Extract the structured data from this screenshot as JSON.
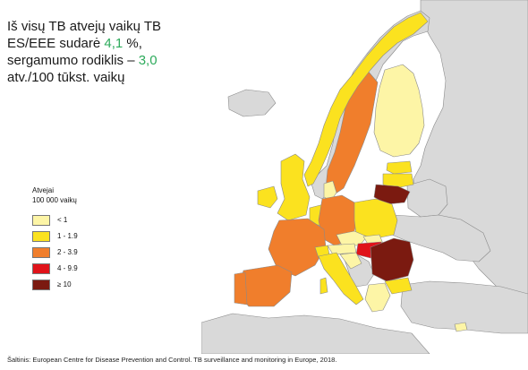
{
  "title": {
    "line1": "Iš visų TB atvejų vaikų TB",
    "line2_pre": "ES/EEE sudarė ",
    "line2_value": "4,1",
    "line2_post": " %,",
    "line3_pre": "sergamumo rodiklis – ",
    "line3_value": "3,0",
    "line4": "atv./100 tūkst. vaikų"
  },
  "legend": {
    "title_line1": "Atvejai",
    "title_line2": "100 000 vaikų",
    "items": [
      {
        "label": "< 1",
        "color": "#fdf5a6"
      },
      {
        "label": "1 - 1.9",
        "color": "#fbe21f"
      },
      {
        "label": "2 - 3.9",
        "color": "#f07e2c"
      },
      {
        "label": "4 - 9.9",
        "color": "#e0131a"
      },
      {
        "label": "≥ 10",
        "color": "#7b1a10"
      }
    ]
  },
  "colors": {
    "sea": "#ffffff",
    "non_eu_land": "#d9d9d9",
    "border": "#8a8a8a",
    "highlight_text": "#2eab5c"
  },
  "source": "Šaltinis: European Centre for Disease Prevention and Control. TB surveillance and monitoring in Europe, 2018."
}
